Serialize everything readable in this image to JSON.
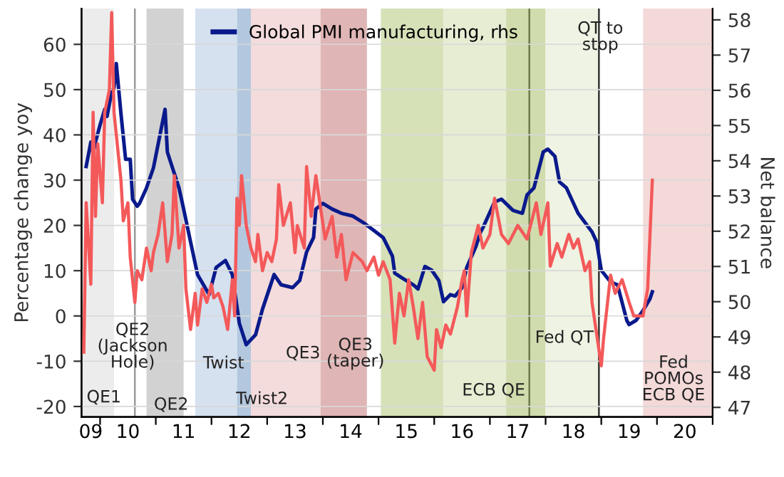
{
  "chart_data": {
    "type": "line",
    "ylabel": "Percentage change yoy",
    "y2label": "Net balance",
    "xlim": [
      "2009-09",
      "2021-01"
    ],
    "xticks": [
      {
        "value": "2009-11",
        "label": "09"
      },
      {
        "value": "2010-01",
        "label": null
      },
      {
        "value": "2010-07",
        "label": "10"
      },
      {
        "value": "2011-01",
        "label": null
      },
      {
        "value": "2011-07",
        "label": "11"
      },
      {
        "value": "2012-01",
        "label": null
      },
      {
        "value": "2012-07",
        "label": "12"
      },
      {
        "value": "2013-01",
        "label": null
      },
      {
        "value": "2013-07",
        "label": "13"
      },
      {
        "value": "2014-01",
        "label": null
      },
      {
        "value": "2014-07",
        "label": "14"
      },
      {
        "value": "2015-01",
        "label": null
      },
      {
        "value": "2015-07",
        "label": "15"
      },
      {
        "value": "2016-01",
        "label": null
      },
      {
        "value": "2016-07",
        "label": "16"
      },
      {
        "value": "2017-01",
        "label": null
      },
      {
        "value": "2017-07",
        "label": "17"
      },
      {
        "value": "2018-01",
        "label": null
      },
      {
        "value": "2018-07",
        "label": "18"
      },
      {
        "value": "2019-01",
        "label": null
      },
      {
        "value": "2019-07",
        "label": "19"
      },
      {
        "value": "2020-01",
        "label": null
      },
      {
        "value": "2020-07",
        "label": "20"
      },
      {
        "value": "2021-01",
        "label": null
      }
    ],
    "ylim": [
      -22.3,
      67.9
    ],
    "yticks": [
      -20,
      -10,
      0,
      10,
      20,
      30,
      40,
      50,
      60
    ],
    "y2lim": [
      46.73,
      58.32
    ],
    "y2ticks": [
      47,
      48,
      49,
      50,
      51,
      52,
      53,
      54,
      55,
      56,
      57,
      58
    ],
    "grid": "y",
    "legend": "top",
    "bands": [
      {
        "axis": "x",
        "from": "2009-09",
        "to": "2010-04",
        "color": "#ececec"
      },
      {
        "axis": "x",
        "from": "2010-11",
        "to": "2011-07",
        "color": "#d2d2d2"
      },
      {
        "axis": "x",
        "from": "2011-09-16",
        "to": "2012-06-16",
        "color": "#d5e1ef"
      },
      {
        "axis": "x",
        "from": "2012-06-16",
        "to": "2012-09-16",
        "color": "#b3c8df"
      },
      {
        "axis": "x",
        "from": "2012-09-16",
        "to": "2013-12-16",
        "color": "#f4dcdc"
      },
      {
        "axis": "x",
        "from": "2013-12-16",
        "to": "2014-10-16",
        "color": "#e0b5b5"
      },
      {
        "axis": "x",
        "from": "2015-01-16",
        "to": "2016-03",
        "color": "#d6e1b8"
      },
      {
        "axis": "x",
        "from": "2016-03",
        "to": "2017-04-16",
        "color": "#e6edd3"
      },
      {
        "axis": "x",
        "from": "2017-04-16",
        "to": "2018-01",
        "color": "#d0dcad"
      },
      {
        "axis": "x",
        "from": "2018-01",
        "to": "2018-12-16",
        "color": "#eef3e3"
      },
      {
        "axis": "x",
        "from": "2019-10",
        "to": "2021-01",
        "color": "#f4d9d9"
      }
    ],
    "ref_lines": [
      {
        "axis": "x",
        "value": "2010-08-16",
        "color": "#9a9a9a"
      },
      {
        "axis": "x",
        "value": "2017-09-16",
        "color": "#6b7a4a"
      },
      {
        "axis": "x",
        "value": "2018-12-16",
        "color": "#333333"
      }
    ],
    "annotations": [
      "QE1",
      "QE2\n(Jackson\nHole)",
      "QE2",
      "Twist",
      "Twist2",
      "QE3",
      "QE3\n(taper)",
      "ECB QE",
      "Fed QT",
      "QT to\nstop",
      "Fed\nPOMOs\nECB QE"
    ],
    "series": [
      {
        "color": "#f4595a",
        "x": [
          "2009-09-16",
          "2009-10-01",
          "2009-11-01",
          "2009-11-16",
          "2009-12-01",
          "2009-12-16",
          "2010-01-16",
          "2010-02-01",
          "2010-03-01",
          "2010-03-16",
          "2010-04-01",
          "2010-04-16",
          "2010-05-16",
          "2010-06-01",
          "2010-07-01",
          "2010-07-16",
          "2010-08-16",
          "2010-09-01",
          "2010-10-01",
          "2010-11-01",
          "2010-12-01",
          "2010-12-16",
          "2011-01-16",
          "2011-02-16",
          "2011-03-16",
          "2011-04-16",
          "2011-05-01",
          "2011-06-01",
          "2011-07-01",
          "2011-07-16",
          "2011-08-16",
          "2011-09-16",
          "2011-10-01",
          "2011-11-01",
          "2011-12-01",
          "2012-01-01",
          "2012-01-16",
          "2012-02-16",
          "2012-03-16",
          "2012-04-16",
          "2012-05-16",
          "2012-06-01",
          "2012-06-16",
          "2012-07-01",
          "2012-07-16",
          "2012-08-16",
          "2012-09-16",
          "2012-10-16",
          "2012-11-01",
          "2012-12-01",
          "2013-01-01",
          "2013-02-01",
          "2013-03-01",
          "2013-03-16",
          "2013-04-16",
          "2013-06-01",
          "2013-07-01",
          "2013-07-16",
          "2013-09-01",
          "2013-09-16",
          "2013-10-16",
          "2013-11-16",
          "2013-12-16",
          "2014-01-16",
          "2014-03-01",
          "2014-04-01",
          "2014-05-01",
          "2014-06-01",
          "2014-07-16",
          "2014-09-16",
          "2014-10-16",
          "2014-12-01",
          "2015-01-01",
          "2015-02-01",
          "2015-03-16",
          "2015-04-16",
          "2015-05-16",
          "2015-06-16",
          "2015-07-16",
          "2015-08-16",
          "2015-09-16",
          "2015-10-16",
          "2015-11-16",
          "2016-01-01",
          "2016-01-16",
          "2016-02-16",
          "2016-03-16",
          "2016-04-16",
          "2016-06-01",
          "2016-07-01",
          "2016-07-16",
          "2016-08-01",
          "2016-09-01",
          "2016-10-16",
          "2016-11-16",
          "2017-01-01",
          "2017-02-01",
          "2017-03-16",
          "2017-05-01",
          "2017-07-01",
          "2017-09-01",
          "2017-11-01",
          "2017-12-01",
          "2018-01-16",
          "2018-02-01",
          "2018-03-16",
          "2018-04-16",
          "2018-06-01",
          "2018-07-01",
          "2018-08-01",
          "2018-09-16",
          "2018-10-16",
          "2018-11-01",
          "2019-01-01",
          "2019-01-16",
          "2019-03-01",
          "2019-04-01",
          "2019-05-16",
          "2019-07-01",
          "2019-08-01",
          "2019-10-01",
          "2019-11-01",
          "2019-12-01"
        ],
        "values": [
          -8,
          25,
          7,
          45,
          22,
          38,
          25,
          45,
          50,
          67,
          45,
          40,
          30,
          21,
          25,
          13,
          3,
          10,
          8,
          15,
          10,
          14,
          18,
          25,
          12,
          18,
          31,
          15,
          20,
          6,
          -3,
          5,
          -2,
          6,
          3,
          7,
          4,
          5,
          2,
          -3,
          8,
          0,
          26,
          20,
          31,
          20,
          15,
          12,
          18,
          10,
          14,
          12,
          17,
          29,
          20,
          25,
          14,
          20,
          15,
          33,
          22,
          31,
          24,
          17,
          22,
          13,
          18,
          8,
          14,
          12,
          10,
          13,
          9,
          12,
          8,
          -6,
          5,
          0,
          8,
          2,
          -5,
          3,
          -9,
          -12,
          -3,
          -7,
          -2,
          -4,
          2,
          8,
          10,
          0,
          14,
          20,
          15,
          18,
          26,
          18,
          16,
          20,
          17,
          25,
          18,
          25,
          11,
          16,
          13,
          18,
          15,
          17,
          10,
          12,
          3,
          -11,
          -5,
          9,
          5,
          8,
          3,
          0,
          0,
          6,
          30
        ]
      },
      {
        "name": "Global PMI manufacturing, rhs",
        "color": "#0a1a8c",
        "axis": "y2",
        "x": [
          "2009-10-01",
          "2009-11-01",
          "2009-11-16",
          "2009-12-01",
          "2010-01-01",
          "2010-02-01",
          "2010-02-16",
          "2010-03-16",
          "2010-04-01",
          "2010-04-16",
          "2010-05-16",
          "2010-06-16",
          "2010-07-16",
          "2010-08-01",
          "2010-09-01",
          "2010-09-16",
          "2010-11-01",
          "2010-12-16",
          "2011-03-01",
          "2011-03-16",
          "2011-06-01",
          "2011-07-01",
          "2011-08-16",
          "2011-10-01",
          "2011-12-16",
          "2012-02-01",
          "2012-04-01",
          "2012-05-16",
          "2012-07-01",
          "2012-08-16",
          "2012-10-16",
          "2012-12-01",
          "2013-02-16",
          "2013-04-01",
          "2013-06-16",
          "2013-08-01",
          "2013-09-16",
          "2013-11-01",
          "2013-11-16",
          "2014-01-01",
          "2014-03-01",
          "2014-05-01",
          "2014-07-16",
          "2014-10-01",
          "2014-12-01",
          "2015-02-01",
          "2015-04-01",
          "2015-04-16",
          "2015-06-01",
          "2015-08-16",
          "2015-09-16",
          "2015-11-01",
          "2015-12-16",
          "2016-02-01",
          "2016-03-01",
          "2016-04-16",
          "2016-05-16",
          "2016-07-01",
          "2016-08-01",
          "2016-10-01",
          "2016-11-01",
          "2016-11-16",
          "2017-02-01",
          "2017-03-16",
          "2017-06-01",
          "2017-08-01",
          "2017-09-01",
          "2017-10-16",
          "2017-12-16",
          "2018-01-16",
          "2018-03-01",
          "2018-04-01",
          "2018-05-16",
          "2018-08-01",
          "2018-11-01",
          "2018-12-01",
          "2019-01-01",
          "2019-03-01",
          "2019-04-16",
          "2019-06-16",
          "2019-07-01",
          "2019-08-16",
          "2019-10-01",
          "2019-11-16",
          "2019-12-01"
        ],
        "values": [
          53.84,
          54.53,
          54.21,
          54.53,
          55.02,
          55.46,
          55.26,
          55.95,
          56.07,
          56.76,
          55.34,
          54.04,
          54.04,
          52.91,
          52.71,
          52.79,
          53.23,
          53.8,
          55.46,
          54.25,
          53.23,
          52.63,
          51.7,
          50.77,
          50.2,
          50.97,
          51.17,
          50.77,
          49.39,
          48.78,
          49.06,
          49.79,
          50.77,
          50.48,
          50.4,
          50.6,
          51.41,
          51.82,
          52.63,
          52.79,
          52.63,
          52.51,
          52.43,
          52.22,
          52.02,
          51.82,
          51.29,
          50.81,
          50.68,
          50.48,
          50.36,
          51.0,
          50.89,
          50.6,
          50.0,
          50.2,
          50.16,
          50.4,
          50.97,
          51.57,
          51.98,
          52.1,
          52.83,
          52.91,
          52.59,
          52.51,
          53.03,
          53.23,
          54.25,
          54.33,
          54.13,
          53.4,
          53.23,
          52.51,
          51.98,
          51.7,
          50.89,
          50.56,
          50.48,
          49.47,
          49.35,
          49.47,
          49.75,
          50.08,
          50.28
        ]
      }
    ]
  }
}
